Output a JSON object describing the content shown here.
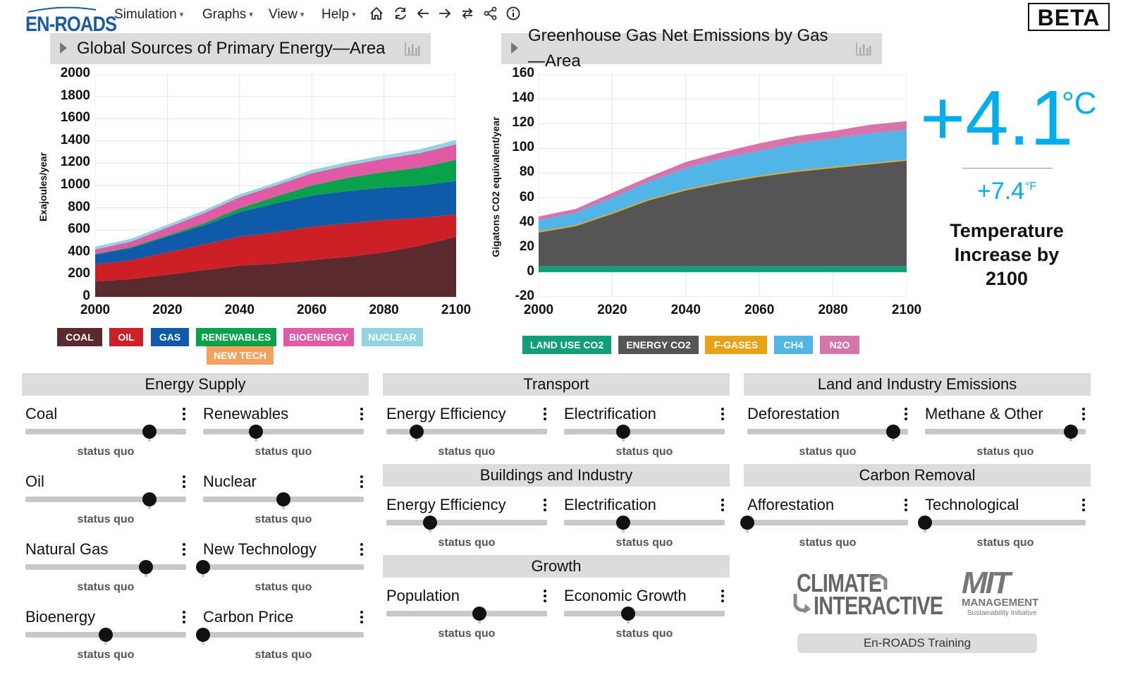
{
  "app": {
    "logo_text": "EN-ROADS",
    "beta_badge": "BETA"
  },
  "menu": [
    {
      "label": "Simulation"
    },
    {
      "label": "Graphs"
    },
    {
      "label": "View"
    },
    {
      "label": "Help"
    }
  ],
  "toolbar_icons": [
    "home-icon",
    "refresh-icon",
    "back-arrow-icon",
    "forward-arrow-icon",
    "compare-icon",
    "share-icon",
    "info-icon"
  ],
  "graph1": {
    "title": "Global Sources of Primary Energy—Area",
    "ylabel": "Exajoules/year",
    "yticks": [
      "2000",
      "1800",
      "1600",
      "1400",
      "1200",
      "1000",
      "800",
      "600",
      "400",
      "200",
      "0"
    ],
    "xticks": [
      "2000",
      "2020",
      "2040",
      "2060",
      "2080",
      "2100"
    ],
    "legend": [
      {
        "label": "COAL",
        "color": "#5b2a2e"
      },
      {
        "label": "OIL",
        "color": "#cc1f26"
      },
      {
        "label": "GAS",
        "color": "#0f5ba9"
      },
      {
        "label": "RENEWABLES",
        "color": "#0aa14b"
      },
      {
        "label": "BIOENERGY",
        "color": "#e05aa6"
      },
      {
        "label": "NUCLEAR",
        "color": "#8fd4e0"
      },
      {
        "label": "NEW TECH",
        "color": "#f5a160"
      }
    ]
  },
  "graph2": {
    "title": "Greenhouse Gas Net Emissions by Gas—Area",
    "ylabel": "Gigatons CO2 equivalent/year",
    "yticks": [
      "160",
      "140",
      "120",
      "100",
      "80",
      "60",
      "40",
      "20",
      "0",
      "-20"
    ],
    "xticks": [
      "2000",
      "2020",
      "2040",
      "2060",
      "2080",
      "2100"
    ],
    "legend": [
      {
        "label": "LAND USE CO2",
        "color": "#10a077"
      },
      {
        "label": "ENERGY CO2",
        "color": "#555555"
      },
      {
        "label": "F-GASES",
        "color": "#e8a317"
      },
      {
        "label": "CH4",
        "color": "#51b5e8"
      },
      {
        "label": "N2O",
        "color": "#d774ab"
      }
    ]
  },
  "chart_data": [
    {
      "type": "area",
      "title": "Global Sources of Primary Energy—Area",
      "ylabel": "Exajoules/year",
      "ylim": [
        0,
        2000
      ],
      "x": [
        2000,
        2010,
        2020,
        2030,
        2040,
        2050,
        2060,
        2070,
        2080,
        2090,
        2100
      ],
      "stacked": true,
      "series": [
        {
          "name": "COAL",
          "values": [
            140,
            160,
            200,
            240,
            280,
            300,
            330,
            360,
            400,
            460,
            540
          ]
        },
        {
          "name": "OIL",
          "values": [
            150,
            170,
            200,
            230,
            260,
            280,
            300,
            300,
            290,
            250,
            200
          ]
        },
        {
          "name": "GAS",
          "values": [
            90,
            110,
            140,
            170,
            220,
            260,
            280,
            290,
            290,
            290,
            300
          ]
        },
        {
          "name": "RENEWABLES",
          "values": [
            5,
            8,
            12,
            20,
            35,
            60,
            90,
            120,
            140,
            160,
            190
          ]
        },
        {
          "name": "BIOENERGY",
          "values": [
            40,
            50,
            70,
            90,
            100,
            100,
            110,
            110,
            120,
            130,
            140
          ]
        },
        {
          "name": "NUCLEAR",
          "values": [
            25,
            25,
            25,
            25,
            25,
            25,
            30,
            30,
            30,
            35,
            40
          ]
        },
        {
          "name": "NEW TECH",
          "values": [
            0,
            0,
            0,
            0,
            0,
            0,
            0,
            0,
            0,
            0,
            0
          ]
        }
      ]
    },
    {
      "type": "area",
      "title": "Greenhouse Gas Net Emissions by Gas—Area",
      "ylabel": "Gigatons CO2 equivalent/year",
      "ylim": [
        -20,
        160
      ],
      "x": [
        2000,
        2010,
        2020,
        2030,
        2040,
        2050,
        2060,
        2070,
        2080,
        2090,
        2100
      ],
      "stacked": true,
      "series": [
        {
          "name": "LAND USE CO2",
          "values": [
            5,
            5,
            5,
            5,
            5,
            5,
            5,
            5,
            5,
            5,
            5
          ]
        },
        {
          "name": "ENERGY CO2",
          "values": [
            27,
            32,
            42,
            53,
            61,
            67,
            72,
            76,
            79,
            82,
            85
          ]
        },
        {
          "name": "F-GASES",
          "values": [
            1,
            1,
            1,
            1,
            1,
            1,
            1,
            1,
            1,
            1,
            1
          ]
        },
        {
          "name": "CH4",
          "values": [
            9,
            10,
            12,
            14,
            17,
            19,
            20,
            22,
            23,
            24,
            24
          ]
        },
        {
          "name": "N2O",
          "values": [
            3,
            3,
            4,
            4,
            5,
            5,
            6,
            6,
            6,
            7,
            7
          ]
        }
      ]
    }
  ],
  "temperature": {
    "celsius": "+4.1",
    "celsius_unit": "°C",
    "fahrenheit": "+7.4",
    "fahrenheit_unit": "°F",
    "label": "Temperature Increase by 2100"
  },
  "panels": {
    "energy_supply": "Energy Supply",
    "transport": "Transport",
    "land_industry": "Land and Industry Emissions",
    "buildings": "Buildings and Industry",
    "carbon_removal": "Carbon Removal",
    "growth": "Growth"
  },
  "sliders": {
    "coal": {
      "label": "Coal",
      "status": "status quo",
      "value": 0.77
    },
    "renewables": {
      "label": "Renewables",
      "status": "status quo",
      "value": 0.33
    },
    "oil": {
      "label": "Oil",
      "status": "status quo",
      "value": 0.77
    },
    "nuclear": {
      "label": "Nuclear",
      "status": "status quo",
      "value": 0.5
    },
    "natural_gas": {
      "label": "Natural Gas",
      "status": "status quo",
      "value": 0.75
    },
    "new_technology": {
      "label": "New Technology",
      "status": "status quo",
      "value": 0.0
    },
    "bioenergy": {
      "label": "Bioenergy",
      "status": "status quo",
      "value": 0.5
    },
    "carbon_price": {
      "label": "Carbon Price",
      "status": "status quo",
      "value": 0.0
    },
    "transport_efficiency": {
      "label": "Energy Efficiency",
      "status": "status quo",
      "value": 0.19
    },
    "transport_electrification": {
      "label": "Electrification",
      "status": "status quo",
      "value": 0.37
    },
    "deforestation": {
      "label": "Deforestation",
      "status": "status quo",
      "value": 0.91
    },
    "methane_other": {
      "label": "Methane & Other",
      "status": "status quo",
      "value": 0.91
    },
    "buildings_efficiency": {
      "label": "Energy Efficiency",
      "status": "status quo",
      "value": 0.27
    },
    "buildings_electrification": {
      "label": "Electrification",
      "status": "status quo",
      "value": 0.37
    },
    "afforestation": {
      "label": "Afforestation",
      "status": "status quo",
      "value": 0.0
    },
    "technological": {
      "label": "Technological",
      "status": "status quo",
      "value": 0.0
    },
    "population": {
      "label": "Population",
      "status": "status quo",
      "value": 0.58
    },
    "economic_growth": {
      "label": "Economic Growth",
      "status": "status quo",
      "value": 0.4
    }
  },
  "partners": {
    "ci_line1": "CLIMATE",
    "ci_line2": "INTERACTIVE",
    "mit_line1": "MIT",
    "mit_line2": "MANAGEMENT",
    "mit_line3": "Sustainability Initiative"
  },
  "training_button": "En-ROADS Training"
}
